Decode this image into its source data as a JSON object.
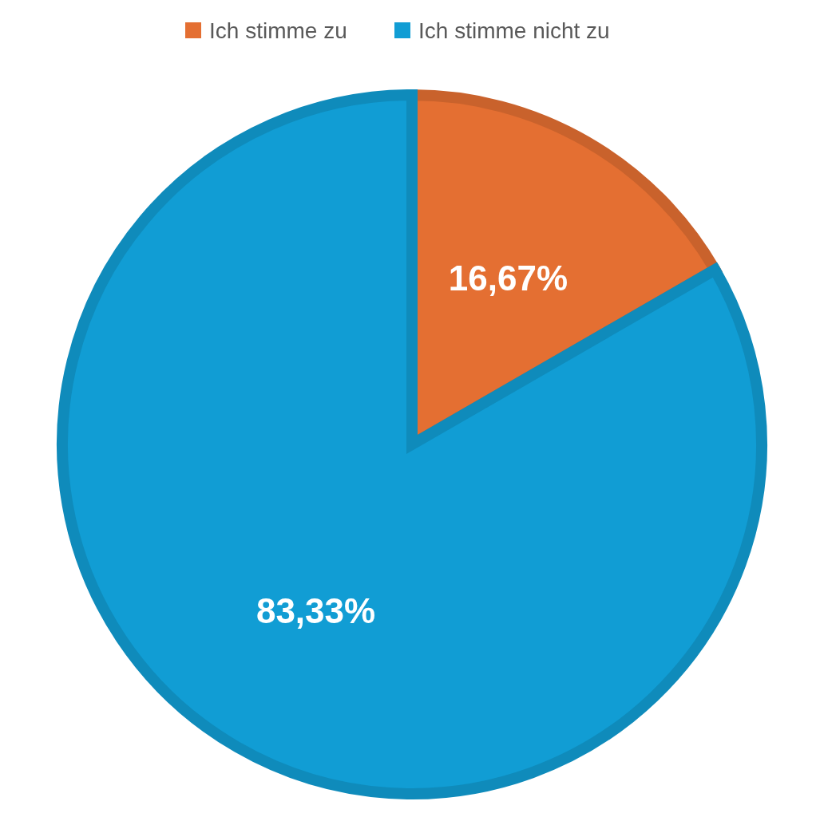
{
  "chart_data": {
    "type": "pie",
    "categories": [
      "Ich stimme zu",
      "Ich stimme nicht zu"
    ],
    "values": [
      16.67,
      83.33
    ],
    "colors": [
      "#e46f32",
      "#119dd4"
    ],
    "value_labels": [
      "16,67%",
      "83,33%"
    ],
    "legend": "top"
  }
}
